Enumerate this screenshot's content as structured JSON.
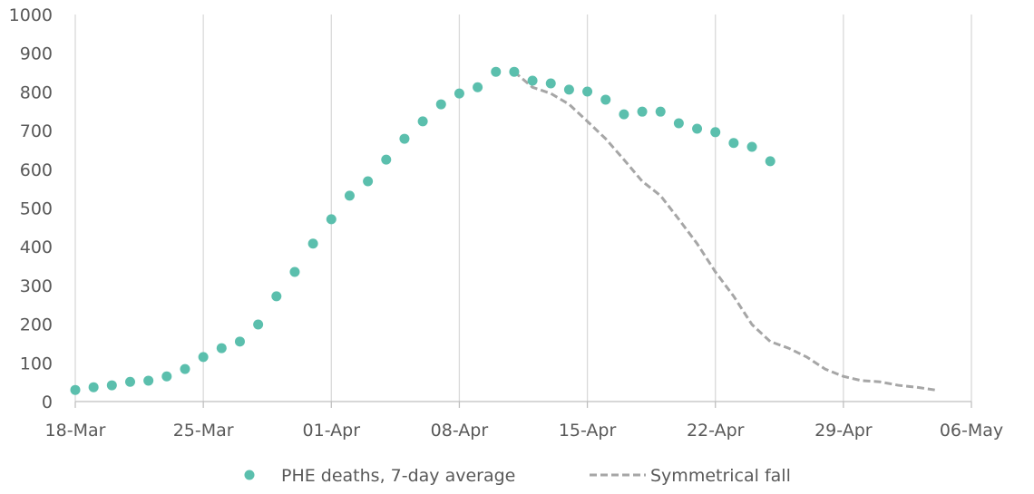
{
  "chart_data": {
    "type": "scatter",
    "title": "",
    "xlabel": "",
    "ylabel": "",
    "ylim": [
      0,
      1000
    ],
    "yticks": [
      0,
      100,
      200,
      300,
      400,
      500,
      600,
      700,
      800,
      900,
      1000
    ],
    "xtick_labels": [
      "18-Mar",
      "25-Mar",
      "01-Apr",
      "08-Apr",
      "15-Apr",
      "22-Apr",
      "29-Apr",
      "06-May"
    ],
    "grid": "vertical",
    "legend": "bottom",
    "colors": {
      "deaths": "#5bbfad",
      "symmetric": "#a6a6a6"
    },
    "series": [
      {
        "name": "PHE deaths, 7-day average",
        "style": "markers",
        "start_date": "18-Mar",
        "values": [
          30,
          37,
          42,
          51,
          54,
          65,
          84,
          115,
          138,
          155,
          199,
          272,
          335,
          408,
          471,
          532,
          569,
          625,
          679,
          724,
          768,
          796,
          812,
          852,
          852,
          829,
          822,
          806,
          801,
          780,
          742,
          749,
          749,
          719,
          705,
          696,
          668,
          658,
          621
        ]
      },
      {
        "name": "Symmetrical fall",
        "style": "dashed-line",
        "start_date": "11-Apr",
        "values": [
          852,
          812,
          796,
          768,
          724,
          679,
          625,
          569,
          532,
          471,
          408,
          335,
          272,
          199,
          155,
          138,
          115,
          84,
          65,
          54,
          51,
          42,
          37,
          30
        ]
      }
    ]
  }
}
